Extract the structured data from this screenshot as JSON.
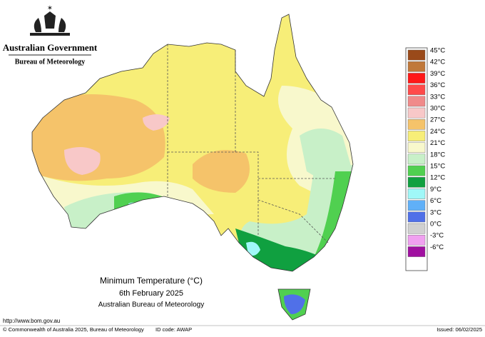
{
  "header": {
    "title": "Australian Government",
    "subtitle": "Bureau of Meteorology"
  },
  "map": {
    "title": "Minimum Temperature (°C)",
    "date": "6th February 2025",
    "source": "Australian Bureau of Meteorology"
  },
  "legend": {
    "items": [
      {
        "label": "45°C",
        "color": "#9a4a1a"
      },
      {
        "label": "42°C",
        "color": "#c0783a"
      },
      {
        "label": "39°C",
        "color": "#ff1818"
      },
      {
        "label": "36°C",
        "color": "#ff4a4a"
      },
      {
        "label": "33°C",
        "color": "#f08a8a"
      },
      {
        "label": "30°C",
        "color": "#f8c8c8"
      },
      {
        "label": "27°C",
        "color": "#f5c36a"
      },
      {
        "label": "24°C",
        "color": "#f7ee78"
      },
      {
        "label": "21°C",
        "color": "#f8f8cc"
      },
      {
        "label": "18°C",
        "color": "#c8f0c8"
      },
      {
        "label": "15°C",
        "color": "#50d050"
      },
      {
        "label": "12°C",
        "color": "#10a040"
      },
      {
        "label": "9°C",
        "color": "#a0f8f8"
      },
      {
        "label": "6°C",
        "color": "#60b0f8"
      },
      {
        "label": "3°C",
        "color": "#5070e8"
      },
      {
        "label": "0°C",
        "color": "#d0d0d0"
      },
      {
        "label": "-3°C",
        "color": "#f0a0f0"
      },
      {
        "label": "-6°C",
        "color": "#a010a0"
      }
    ]
  },
  "footer": {
    "url": "http://www.bom.gov.au",
    "copyright": "© Commonwealth of Australia 2025, Bureau of Meteorology",
    "id_code": "ID code: AWAP",
    "issued": "Issued: 06/02/2025"
  }
}
